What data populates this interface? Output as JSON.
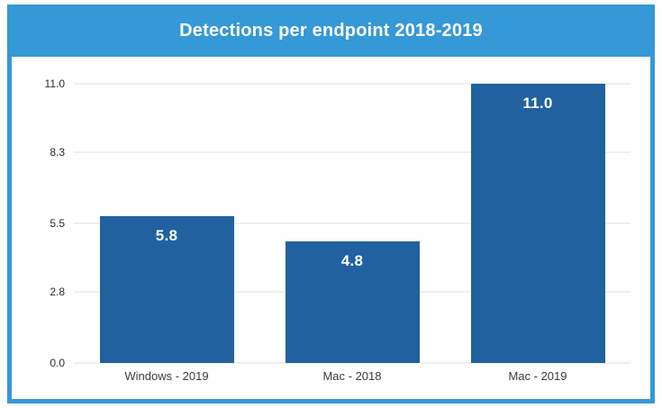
{
  "chart_data": {
    "type": "bar",
    "title": "Detections per endpoint 2018-2019",
    "categories": [
      "Windows - 2019",
      "Mac - 2018",
      "Mac - 2019"
    ],
    "values": [
      5.8,
      4.8,
      11.0
    ],
    "value_labels": [
      "5.8",
      "4.8",
      "11.0"
    ],
    "ylim": [
      0,
      11
    ],
    "yticks": [
      0.0,
      2.8,
      5.5,
      8.3,
      11.0
    ],
    "ytick_labels": [
      "0.0",
      "2.8",
      "5.5",
      "8.3",
      "11.0"
    ],
    "xlabel": "",
    "ylabel": "",
    "grid": true,
    "legend": "none",
    "colors": {
      "header_background": "#3598d7",
      "panel_border": "#3598d7",
      "bar": "#21619f",
      "gridline": "#efefef",
      "title_text": "#ffffff",
      "value_text": "#ffffff",
      "tick_text": "#2b2b2b"
    }
  }
}
